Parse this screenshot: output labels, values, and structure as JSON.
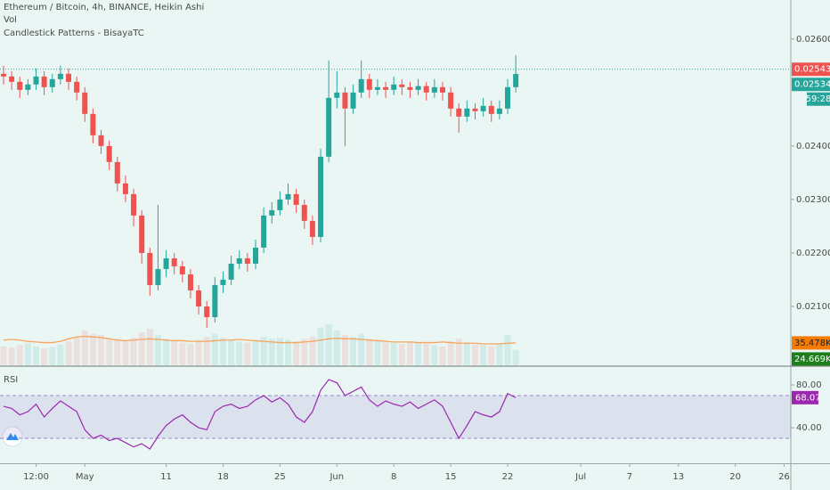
{
  "chart_data": [
    {
      "type": "candlestick",
      "title": "Ethereum / Bitcoin, 4h, BINANCE, Heikin Ashi",
      "indicators": [
        "Vol",
        "Candlestick Patterns - BisayaTC"
      ],
      "categories": [
        null,
        null,
        null,
        null,
        "12:00",
        null,
        null,
        null,
        null,
        null,
        "May",
        null,
        null,
        null,
        null,
        null,
        null,
        null,
        null,
        null,
        "11",
        null,
        null,
        null,
        null,
        null,
        null,
        "18",
        null,
        null,
        null,
        null,
        null,
        null,
        "25",
        null,
        null,
        null,
        null,
        null,
        null,
        "Jun",
        null,
        null,
        null,
        null,
        null,
        null,
        "8",
        null,
        null,
        null,
        null,
        null,
        null,
        "15",
        null,
        null,
        null,
        null,
        null,
        null,
        "22",
        null,
        null,
        null,
        null,
        null,
        null,
        null,
        null,
        "Jul",
        null,
        null,
        null,
        null,
        null,
        "7",
        null,
        null,
        null,
        null,
        null,
        "13",
        null,
        null,
        null,
        null,
        null,
        null,
        "20",
        null,
        null,
        null,
        null,
        null,
        "26"
      ],
      "ohlc": [
        [
          0.02535,
          0.0255,
          0.02515,
          0.0253
        ],
        [
          0.0253,
          0.0254,
          0.02505,
          0.0252
        ],
        [
          0.0252,
          0.0253,
          0.0249,
          0.02505
        ],
        [
          0.02505,
          0.02525,
          0.02495,
          0.02515
        ],
        [
          0.02515,
          0.02545,
          0.02505,
          0.0253
        ],
        [
          0.0253,
          0.0254,
          0.02495,
          0.0251
        ],
        [
          0.0251,
          0.02535,
          0.025,
          0.02525
        ],
        [
          0.02525,
          0.0255,
          0.02515,
          0.02535
        ],
        [
          0.02535,
          0.02545,
          0.02505,
          0.0252
        ],
        [
          0.0252,
          0.0253,
          0.02485,
          0.025
        ],
        [
          0.025,
          0.0251,
          0.02445,
          0.0246
        ],
        [
          0.0246,
          0.0247,
          0.02405,
          0.0242
        ],
        [
          0.0242,
          0.0243,
          0.02385,
          0.024
        ],
        [
          0.024,
          0.0241,
          0.02355,
          0.0237
        ],
        [
          0.0237,
          0.0238,
          0.02315,
          0.0233
        ],
        [
          0.0233,
          0.02345,
          0.02295,
          0.0231
        ],
        [
          0.0231,
          0.0232,
          0.0225,
          0.0227
        ],
        [
          0.0227,
          0.0228,
          0.0218,
          0.022
        ],
        [
          0.022,
          0.0221,
          0.0212,
          0.0214
        ],
        [
          0.0214,
          0.0229,
          0.0213,
          0.0217
        ],
        [
          0.0217,
          0.02205,
          0.02155,
          0.0219
        ],
        [
          0.0219,
          0.022,
          0.0216,
          0.02175
        ],
        [
          0.02175,
          0.02185,
          0.02145,
          0.0216
        ],
        [
          0.0216,
          0.0217,
          0.02115,
          0.0213
        ],
        [
          0.0213,
          0.0214,
          0.02085,
          0.021
        ],
        [
          0.021,
          0.0211,
          0.0206,
          0.0208
        ],
        [
          0.0208,
          0.02155,
          0.0207,
          0.0214
        ],
        [
          0.0214,
          0.02165,
          0.02125,
          0.0215
        ],
        [
          0.0215,
          0.02195,
          0.0214,
          0.0218
        ],
        [
          0.0218,
          0.02205,
          0.0217,
          0.0219
        ],
        [
          0.0219,
          0.022,
          0.02165,
          0.0218
        ],
        [
          0.0218,
          0.02225,
          0.0217,
          0.0221
        ],
        [
          0.0221,
          0.02285,
          0.022,
          0.0227
        ],
        [
          0.0227,
          0.02295,
          0.02255,
          0.0228
        ],
        [
          0.0228,
          0.02315,
          0.0227,
          0.023
        ],
        [
          0.023,
          0.0233,
          0.0229,
          0.0231
        ],
        [
          0.0231,
          0.0232,
          0.02275,
          0.0229
        ],
        [
          0.0229,
          0.023,
          0.02245,
          0.0226
        ],
        [
          0.0226,
          0.0227,
          0.02215,
          0.0223
        ],
        [
          0.0223,
          0.02395,
          0.0222,
          0.0238
        ],
        [
          0.0238,
          0.0256,
          0.0237,
          0.0249
        ],
        [
          0.0249,
          0.0254,
          0.0247,
          0.025
        ],
        [
          0.025,
          0.0251,
          0.024,
          0.0247
        ],
        [
          0.0247,
          0.02515,
          0.0246,
          0.025
        ],
        [
          0.025,
          0.0256,
          0.0249,
          0.02525
        ],
        [
          0.02525,
          0.02535,
          0.0249,
          0.02505
        ],
        [
          0.02505,
          0.02525,
          0.02495,
          0.0251
        ],
        [
          0.0251,
          0.0252,
          0.0249,
          0.02505
        ],
        [
          0.02505,
          0.0253,
          0.02495,
          0.02515
        ],
        [
          0.02515,
          0.02525,
          0.02495,
          0.0251
        ],
        [
          0.0251,
          0.0252,
          0.0249,
          0.02505
        ],
        [
          0.02505,
          0.02525,
          0.02495,
          0.02512
        ],
        [
          0.02512,
          0.0252,
          0.02485,
          0.025
        ],
        [
          0.025,
          0.02525,
          0.0249,
          0.0251
        ],
        [
          0.0251,
          0.0252,
          0.02485,
          0.025
        ],
        [
          0.025,
          0.0251,
          0.02455,
          0.0247
        ],
        [
          0.0247,
          0.0248,
          0.02425,
          0.02455
        ],
        [
          0.02455,
          0.02485,
          0.02445,
          0.0247
        ],
        [
          0.0247,
          0.0248,
          0.0245,
          0.02465
        ],
        [
          0.02465,
          0.0249,
          0.02455,
          0.02475
        ],
        [
          0.02475,
          0.02485,
          0.02445,
          0.0246
        ],
        [
          0.0246,
          0.02485,
          0.0245,
          0.0247
        ],
        [
          0.0247,
          0.02525,
          0.0246,
          0.0251
        ],
        [
          0.0251,
          0.0257,
          0.025,
          0.025346
        ],
        null,
        null,
        null,
        null,
        null,
        null,
        null,
        null,
        null,
        null,
        null,
        null,
        null,
        null,
        null,
        null,
        null,
        null,
        null,
        null,
        null,
        null,
        null,
        null,
        null,
        null,
        null,
        null,
        null,
        null,
        null,
        null,
        null
      ],
      "up_color": "#26a69a",
      "down_color": "#ef5350",
      "ylim": [
        0.0199,
        0.02673
      ],
      "yticks": [
        {
          "value": 0.021,
          "label": "0.021000"
        },
        {
          "value": 0.022,
          "label": "0.022000"
        },
        {
          "value": 0.023,
          "label": "0.023000"
        },
        {
          "value": 0.024,
          "label": "0.024000"
        },
        {
          "value": 0.026,
          "label": "0.026000"
        }
      ],
      "price_marks": [
        {
          "value": 0.025435,
          "color": "#ef5350"
        },
        {
          "value": 0.025346,
          "color": "#26a69a"
        }
      ],
      "countdown": "59:28",
      "volume": {
        "ylim": [
          0,
          580
        ],
        "values": [
          30,
          28,
          32,
          35,
          30,
          27,
          29,
          33,
          38,
          45,
          55,
          50,
          48,
          40,
          42,
          38,
          44,
          52,
          58,
          48,
          42,
          38,
          36,
          34,
          40,
          45,
          50,
          44,
          40,
          38,
          36,
          40,
          45,
          42,
          44,
          40,
          38,
          42,
          46,
          60,
          65,
          55,
          48,
          45,
          50,
          42,
          38,
          36,
          35,
          34,
          38,
          36,
          34,
          32,
          30,
          38,
          42,
          36,
          33,
          32,
          30,
          34,
          48,
          24.669,
          null,
          null,
          null,
          null,
          null,
          null,
          null,
          null,
          null,
          null,
          null,
          null,
          null,
          null,
          null,
          null,
          null,
          null,
          null,
          null,
          null,
          null,
          null,
          null,
          null,
          null,
          null,
          null,
          null,
          null,
          null,
          null,
          null
        ],
        "ma": {
          "color": "#f7a35c",
          "values": [
            40,
            41,
            40,
            38,
            37,
            36,
            36,
            38,
            42,
            45,
            46,
            45,
            44,
            42,
            40,
            39,
            40,
            41,
            42,
            41,
            40,
            39,
            39,
            38,
            38,
            38,
            39,
            40,
            40,
            41,
            40,
            39,
            38,
            37,
            36,
            36,
            36,
            37,
            38,
            40,
            42,
            43,
            42,
            42,
            41,
            40,
            39,
            38,
            37,
            37,
            37,
            36,
            36,
            36,
            37,
            36,
            35,
            35,
            35,
            34,
            34,
            34,
            35,
            35.478,
            null,
            null,
            null,
            null,
            null,
            null,
            null,
            null,
            null,
            null,
            null,
            null,
            null,
            null,
            null,
            null,
            null,
            null,
            null,
            null,
            null,
            null,
            null,
            null,
            null,
            null,
            null,
            null,
            null,
            null,
            null,
            null,
            null
          ]
        },
        "labels": [
          {
            "value": 35.478,
            "label": "35.478K",
            "color": "#f57c00"
          },
          {
            "value": 24.669,
            "label": "24.669K",
            "color": "#1b7f1b"
          }
        ]
      }
    },
    {
      "type": "line",
      "title": "RSI",
      "color": "#9c27b0",
      "values": [
        60,
        58,
        52,
        55,
        62,
        50,
        58,
        65,
        60,
        55,
        38,
        30,
        33,
        28,
        30,
        26,
        22,
        25,
        20,
        32,
        42,
        48,
        52,
        45,
        40,
        38,
        55,
        60,
        62,
        58,
        60,
        66,
        70,
        64,
        68,
        62,
        50,
        45,
        55,
        75,
        85,
        82,
        70,
        74,
        78,
        66,
        60,
        65,
        62,
        60,
        64,
        58,
        62,
        66,
        60,
        45,
        30,
        42,
        55,
        52,
        50,
        55,
        72,
        68.07
      ],
      "ylim": [
        6.7,
        96.7
      ],
      "yticks": [
        {
          "value": 40,
          "label": "40.00"
        },
        {
          "value": 80,
          "label": "80.00"
        }
      ],
      "band": [
        30,
        70
      ],
      "band_color": "#7e57c2"
    }
  ]
}
